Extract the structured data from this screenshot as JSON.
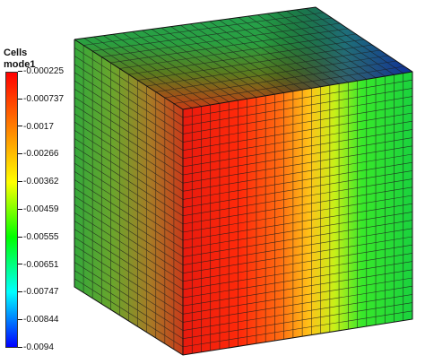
{
  "legend": {
    "title_line1": "Cells",
    "title_line2": "mode1",
    "ticks": [
      "-0.000225",
      "-0.000737",
      "-0.0017",
      "-0.00266",
      "-0.00362",
      "-0.00459",
      "-0.00555",
      "-0.00651",
      "-0.00747",
      "-0.00844",
      "-0.0094"
    ],
    "colormap": [
      "#ff0000",
      "#ff8000",
      "#ffff00",
      "#00ff00",
      "#00ffff",
      "#0000ff"
    ]
  },
  "scene": {
    "object": "cube-mesh",
    "faces": [
      "front-face",
      "side-face",
      "top-face"
    ]
  }
}
